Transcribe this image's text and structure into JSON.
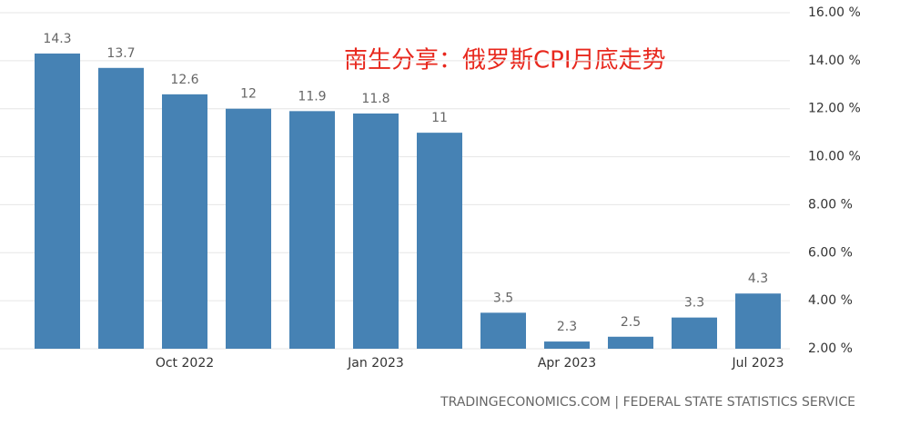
{
  "chart_data": {
    "type": "bar",
    "title": "南生分享：俄罗斯CPI月底走势",
    "source": "TRADINGECONOMICS.COM | FEDERAL STATE STATISTICS SERVICE",
    "categories": [
      null,
      null,
      "Oct 2022",
      null,
      null,
      "Jan 2023",
      null,
      null,
      "Apr 2023",
      null,
      null,
      "Jul 2023"
    ],
    "values": [
      14.3,
      13.7,
      12.6,
      12,
      11.9,
      11.8,
      11,
      3.5,
      2.3,
      2.5,
      3.3,
      4.3
    ],
    "color": "#4682b4",
    "ylim": [
      2,
      16
    ],
    "yticks": [
      {
        "value": 2,
        "label": "2.00 %"
      },
      {
        "value": 4,
        "label": "4.00 %"
      },
      {
        "value": 6,
        "label": "6.00 %"
      },
      {
        "value": 8,
        "label": "8.00 %"
      },
      {
        "value": 10,
        "label": "10.00 %"
      },
      {
        "value": 12,
        "label": "12.00 %"
      },
      {
        "value": 14,
        "label": "14.00 %"
      },
      {
        "value": 16,
        "label": "16.00 %"
      }
    ],
    "grid": true
  }
}
